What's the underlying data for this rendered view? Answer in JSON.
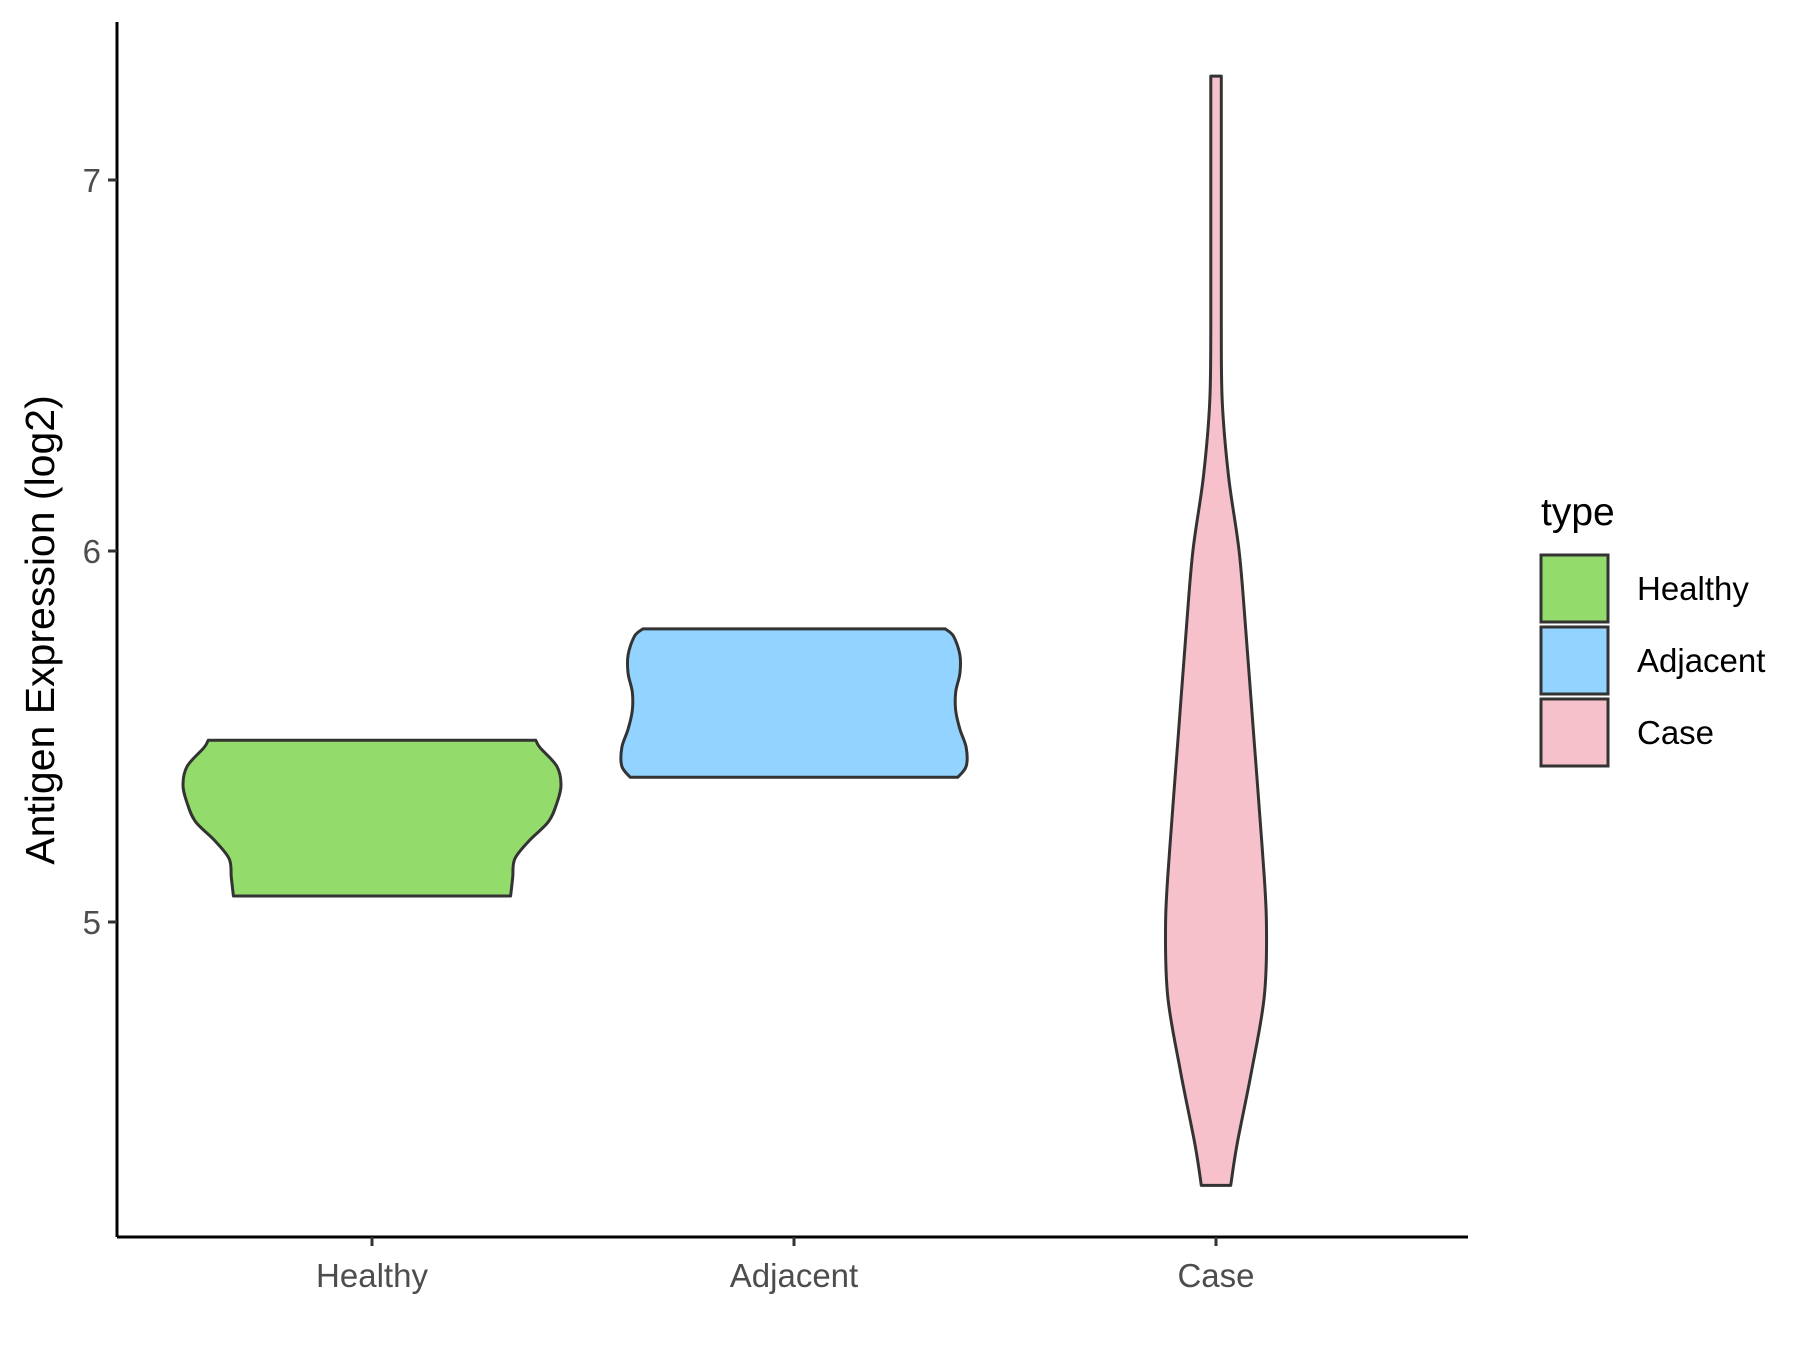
{
  "chart_data": {
    "type": "violin",
    "title": "",
    "xlabel": "",
    "ylabel": "Antigen Expression (log2)",
    "ylim": [
      4.2,
      7.4
    ],
    "yticks": [
      5,
      6,
      7
    ],
    "categories": [
      "Healthy",
      "Adjacent",
      "Case"
    ],
    "grid": false,
    "legend": {
      "title": "type",
      "position": "right",
      "entries": [
        "Healthy",
        "Adjacent",
        "Case"
      ]
    },
    "series": [
      {
        "name": "Healthy",
        "color": "#93DB6A",
        "range": [
          5.07,
          5.49
        ],
        "profile": [
          [
            5.07,
            0.66
          ],
          [
            5.12,
            0.67
          ],
          [
            5.17,
            0.68
          ],
          [
            5.22,
            0.75
          ],
          [
            5.27,
            0.84
          ],
          [
            5.32,
            0.88
          ],
          [
            5.37,
            0.9
          ],
          [
            5.42,
            0.88
          ],
          [
            5.47,
            0.8
          ],
          [
            5.49,
            0.78
          ]
        ]
      },
      {
        "name": "Adjacent",
        "color": "#93D3FF",
        "range": [
          5.39,
          5.79
        ],
        "profile": [
          [
            5.39,
            0.78
          ],
          [
            5.42,
            0.82
          ],
          [
            5.47,
            0.82
          ],
          [
            5.52,
            0.79
          ],
          [
            5.57,
            0.77
          ],
          [
            5.62,
            0.77
          ],
          [
            5.67,
            0.79
          ],
          [
            5.72,
            0.79
          ],
          [
            5.77,
            0.76
          ],
          [
            5.79,
            0.72
          ]
        ]
      },
      {
        "name": "Case",
        "color": "#F7C1CC",
        "range": [
          4.29,
          7.28
        ],
        "profile": [
          [
            4.29,
            0.07
          ],
          [
            4.4,
            0.1
          ],
          [
            4.6,
            0.17
          ],
          [
            4.8,
            0.23
          ],
          [
            5.0,
            0.24
          ],
          [
            5.2,
            0.22
          ],
          [
            5.5,
            0.18
          ],
          [
            5.8,
            0.14
          ],
          [
            6.0,
            0.11
          ],
          [
            6.2,
            0.06
          ],
          [
            6.4,
            0.03
          ],
          [
            6.6,
            0.025
          ],
          [
            6.9,
            0.025
          ],
          [
            7.28,
            0.025
          ]
        ]
      }
    ]
  }
}
